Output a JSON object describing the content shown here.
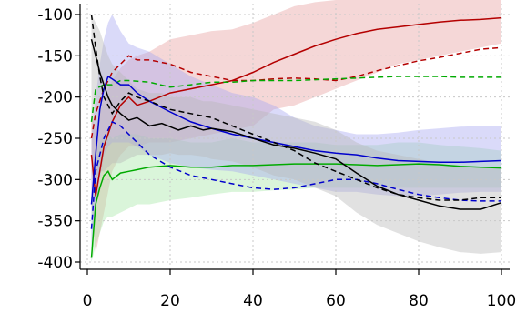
{
  "chart_data": {
    "type": "line",
    "title": "",
    "xlabel": "",
    "ylabel": "",
    "xlim": [
      0,
      100
    ],
    "ylim": [
      -400,
      -100
    ],
    "xticks": [
      0,
      20,
      40,
      60,
      80,
      100
    ],
    "yticks": [
      -100,
      -150,
      -200,
      -250,
      -300,
      -350,
      -400
    ],
    "xtick_labels": [
      "0",
      "20",
      "40",
      "60",
      "80",
      "100"
    ],
    "ytick_labels": [
      "-100",
      "-150",
      "-200",
      "-250",
      "-300",
      "-350",
      "-400"
    ],
    "grid": true,
    "legend": "none",
    "series": [
      {
        "color": "#b40000",
        "dash": "solid",
        "x": [
          1,
          2,
          4,
          6,
          8,
          10,
          12,
          15,
          20,
          25,
          30,
          35,
          40,
          45,
          50,
          55,
          60,
          65,
          70,
          75,
          80,
          85,
          90,
          95,
          100
        ],
        "y": [
          -270,
          -320,
          -260,
          -230,
          -210,
          -200,
          -210,
          -205,
          -195,
          -190,
          -185,
          -180,
          -170,
          -158,
          -148,
          -138,
          -130,
          -123,
          -118,
          -115,
          -112,
          -109,
          -107,
          -106,
          -104
        ],
        "band_upper": [
          -220,
          -240,
          -200,
          -180,
          -165,
          -155,
          -150,
          -145,
          -130,
          -125,
          -120,
          -118,
          -110,
          -100,
          -90,
          -85,
          -80,
          -80,
          -80,
          -80,
          -80,
          -80,
          -80,
          -80,
          -80
        ],
        "band_lower": [
          -330,
          -390,
          -340,
          -290,
          -270,
          -260,
          -260,
          -255,
          -255,
          -250,
          -245,
          -240,
          -235,
          -215,
          -210,
          -200,
          -190,
          -180,
          -170,
          -160,
          -155,
          -150,
          -145,
          -140,
          -135
        ]
      },
      {
        "color": "#b40000",
        "dash": "dashed",
        "x": [
          1,
          2,
          4,
          6,
          8,
          10,
          12,
          15,
          20,
          25,
          30,
          35,
          40,
          45,
          50,
          55,
          60,
          65,
          70,
          75,
          80,
          85,
          90,
          95,
          100
        ],
        "y": [
          -250,
          -220,
          -190,
          -170,
          -160,
          -150,
          -155,
          -155,
          -160,
          -170,
          -175,
          -180,
          -180,
          -178,
          -177,
          -178,
          -180,
          -175,
          -168,
          -162,
          -156,
          -152,
          -147,
          -142,
          -140
        ]
      },
      {
        "color": "#00aa00",
        "dash": "solid",
        "x": [
          1,
          2,
          3,
          4,
          5,
          6,
          8,
          10,
          12,
          15,
          20,
          25,
          30,
          35,
          40,
          45,
          50,
          55,
          60,
          65,
          70,
          75,
          80,
          85,
          90,
          95,
          100
        ],
        "y": [
          -395,
          -330,
          -310,
          -295,
          -290,
          -300,
          -292,
          -290,
          -288,
          -285,
          -283,
          -285,
          -285,
          -283,
          -283,
          -282,
          -281,
          -281,
          -281,
          -282,
          -283,
          -282,
          -281,
          -282,
          -284,
          -285,
          -286
        ],
        "band_upper": [
          -330,
          -270,
          -255,
          -245,
          -245,
          -250,
          -245,
          -245,
          -245,
          -250,
          -250,
          -255,
          -255,
          -250,
          -255,
          -255,
          -255,
          -255,
          -258,
          -258,
          -258,
          -255,
          -255,
          -258,
          -260,
          -262,
          -265
        ],
        "band_lower": [
          -400,
          -380,
          -365,
          -350,
          -345,
          -345,
          -340,
          -335,
          -330,
          -330,
          -325,
          -322,
          -318,
          -315,
          -315,
          -313,
          -312,
          -310,
          -310,
          -310,
          -310,
          -310,
          -310,
          -310,
          -310,
          -310,
          -310
        ]
      },
      {
        "color": "#00aa00",
        "dash": "dashed",
        "x": [
          1,
          2,
          4,
          6,
          8,
          10,
          15,
          20,
          25,
          30,
          35,
          40,
          45,
          50,
          55,
          60,
          65,
          70,
          75,
          80,
          85,
          90,
          95,
          100
        ],
        "y": [
          -230,
          -190,
          -185,
          -185,
          -180,
          -180,
          -182,
          -188,
          -185,
          -182,
          -182,
          -180,
          -180,
          -180,
          -179,
          -178,
          -177,
          -176,
          -175,
          -175,
          -175,
          -176,
          -176,
          -176
        ]
      },
      {
        "color": "#0000cc",
        "dash": "solid",
        "x": [
          1,
          2,
          3,
          4,
          5,
          6,
          8,
          10,
          12,
          15,
          20,
          25,
          30,
          35,
          40,
          45,
          50,
          55,
          60,
          65,
          70,
          75,
          80,
          85,
          90,
          95,
          100
        ],
        "y": [
          -330,
          -270,
          -215,
          -190,
          -175,
          -178,
          -185,
          -185,
          -195,
          -205,
          -218,
          -230,
          -238,
          -245,
          -250,
          -255,
          -260,
          -265,
          -268,
          -270,
          -274,
          -277,
          -278,
          -279,
          -279,
          -278,
          -277
        ],
        "band_upper": [
          -250,
          -200,
          -160,
          -130,
          -110,
          -100,
          -120,
          -135,
          -140,
          -145,
          -160,
          -175,
          -185,
          -195,
          -200,
          -210,
          -225,
          -235,
          -240,
          -245,
          -245,
          -243,
          -240,
          -238,
          -236,
          -235,
          -235
        ],
        "band_lower": [
          -400,
          -340,
          -300,
          -270,
          -260,
          -255,
          -255,
          -255,
          -260,
          -270,
          -280,
          -285,
          -288,
          -290,
          -295,
          -300,
          -305,
          -310,
          -315,
          -315,
          -318,
          -320,
          -320,
          -318,
          -316,
          -315,
          -315
        ]
      },
      {
        "color": "#0000cc",
        "dash": "dashed",
        "x": [
          1,
          2,
          4,
          6,
          8,
          10,
          12,
          15,
          20,
          25,
          30,
          35,
          40,
          45,
          50,
          55,
          60,
          65,
          70,
          75,
          80,
          85,
          90,
          95,
          100
        ],
        "y": [
          -360,
          -290,
          -250,
          -230,
          -235,
          -245,
          -255,
          -270,
          -285,
          -295,
          -300,
          -305,
          -310,
          -312,
          -310,
          -305,
          -300,
          -300,
          -305,
          -312,
          -318,
          -322,
          -325,
          -326,
          -326
        ]
      },
      {
        "color": "#000000",
        "dash": "solid",
        "x": [
          1,
          2,
          3,
          4,
          5,
          6,
          8,
          10,
          12,
          15,
          18,
          20,
          22,
          25,
          28,
          30,
          35,
          40,
          45,
          50,
          55,
          60,
          65,
          70,
          75,
          80,
          85,
          90,
          95,
          100
        ],
        "y": [
          -130,
          -150,
          -170,
          -185,
          -200,
          -210,
          -220,
          -228,
          -225,
          -235,
          -232,
          -236,
          -240,
          -235,
          -240,
          -238,
          -242,
          -250,
          -258,
          -262,
          -268,
          -275,
          -292,
          -308,
          -318,
          -325,
          -332,
          -336,
          -336,
          -328
        ],
        "band_upper": [
          -100,
          -110,
          -120,
          -135,
          -150,
          -160,
          -170,
          -180,
          -190,
          -195,
          -195,
          -200,
          -200,
          -200,
          -205,
          -205,
          -210,
          -215,
          -220,
          -225,
          -230,
          -240,
          -255,
          -265,
          -270,
          -275,
          -280,
          -285,
          -285,
          -285
        ],
        "band_lower": [
          -300,
          -300,
          -290,
          -290,
          -285,
          -280,
          -280,
          -275,
          -270,
          -270,
          -270,
          -268,
          -270,
          -270,
          -272,
          -275,
          -278,
          -285,
          -295,
          -300,
          -310,
          -320,
          -340,
          -355,
          -365,
          -375,
          -382,
          -388,
          -390,
          -388
        ]
      },
      {
        "color": "#000000",
        "dash": "dashed",
        "x": [
          1,
          2,
          3,
          4,
          5,
          6,
          8,
          10,
          12,
          15,
          20,
          25,
          30,
          35,
          40,
          45,
          50,
          55,
          60,
          65,
          70,
          75,
          80,
          85,
          90,
          95,
          100
        ],
        "y": [
          -100,
          -140,
          -175,
          -200,
          -210,
          -220,
          -205,
          -195,
          -200,
          -205,
          -215,
          -220,
          -225,
          -235,
          -245,
          -255,
          -265,
          -280,
          -290,
          -300,
          -310,
          -318,
          -322,
          -325,
          -325,
          -322,
          -322
        ]
      }
    ]
  }
}
